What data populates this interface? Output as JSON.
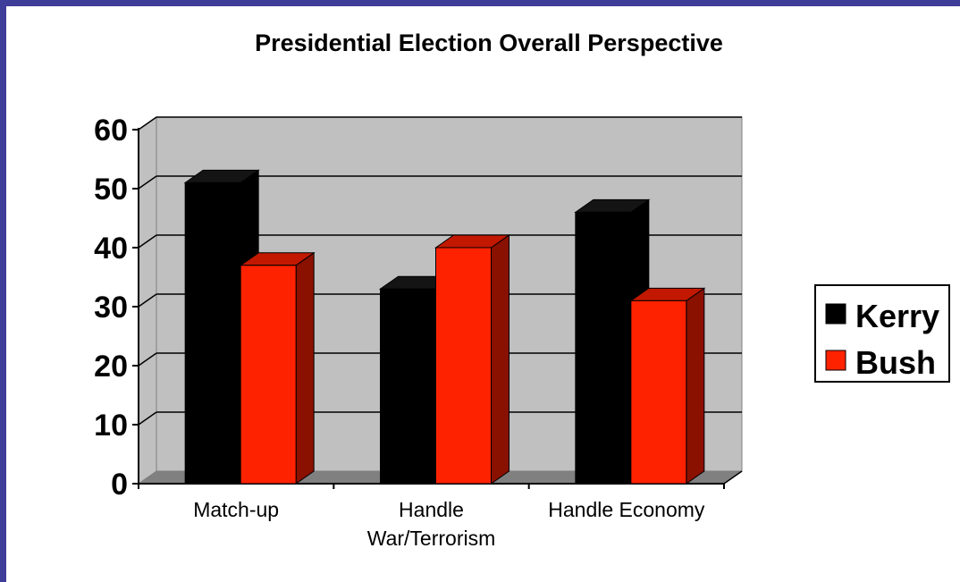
{
  "chart_data": {
    "type": "bar",
    "title": "Presidential Election Overall Perspective",
    "categories": [
      "Match-up",
      "Handle War/Terrorism",
      "Handle Economy"
    ],
    "category_lines": [
      [
        "Match-up"
      ],
      [
        "Handle",
        "War/Terrorism"
      ],
      [
        "Handle Economy"
      ]
    ],
    "series": [
      {
        "name": "Kerry",
        "values": [
          51,
          33,
          46
        ],
        "color": "#000000"
      },
      {
        "name": "Bush",
        "values": [
          37,
          40,
          31
        ],
        "color": "#ff2200"
      }
    ],
    "ylim": [
      0,
      60
    ],
    "yticks": [
      0,
      10,
      20,
      30,
      40,
      50,
      60
    ],
    "xlabel": "",
    "ylabel": "",
    "grid": true,
    "style": "3d-clustered-column",
    "legend": "right",
    "colors": {
      "wall": "#c0c0c0",
      "floor": "#808080",
      "frame_border": "#3e3d9a",
      "bush_side": "#8a1000",
      "bush_top": "#c21800",
      "kerry_side": "#000000",
      "kerry_top": "#141414"
    }
  }
}
